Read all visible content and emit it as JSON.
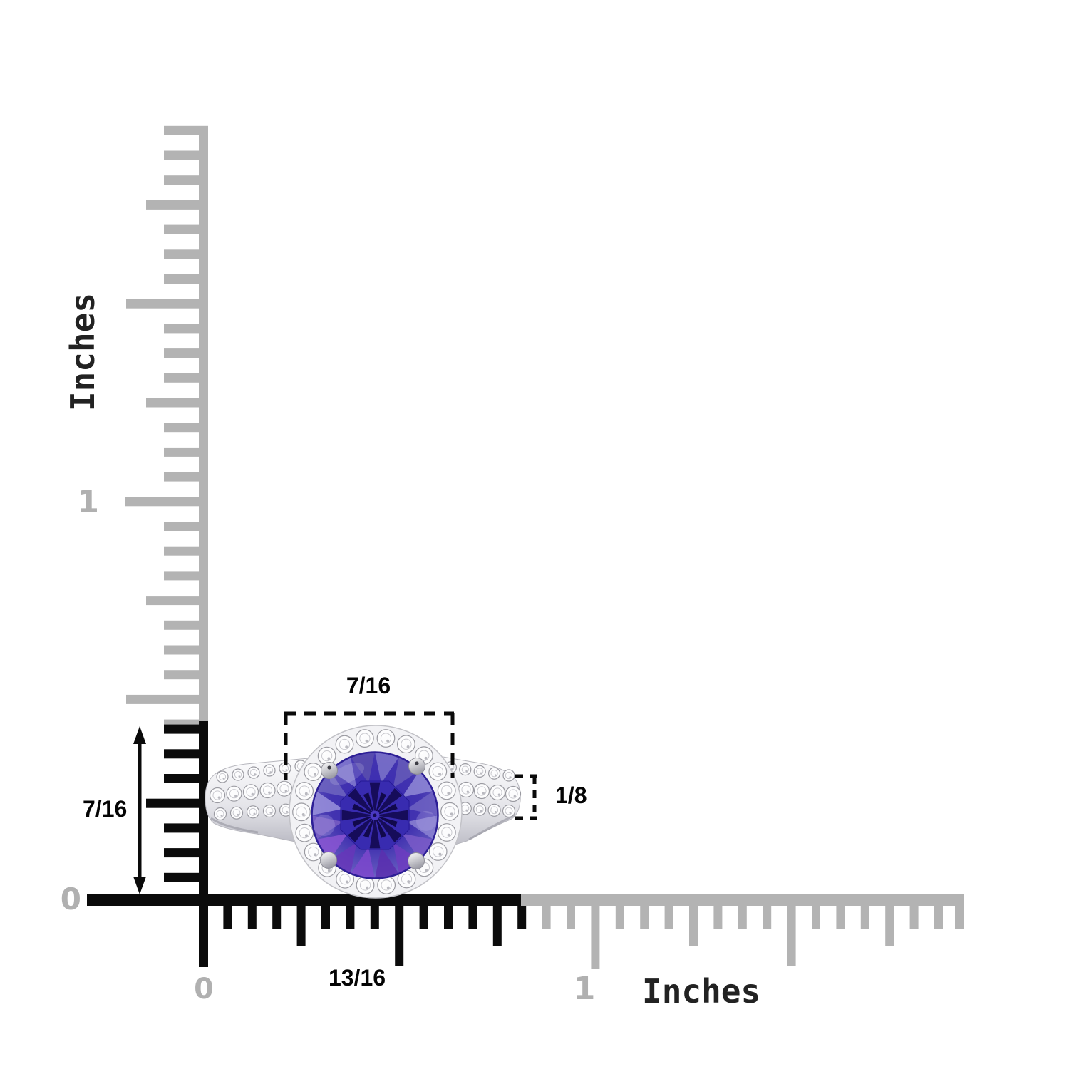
{
  "rulers": {
    "divisions_per_inch": 16,
    "vertical": {
      "label": "Inches",
      "zero": "0",
      "one": "1",
      "black_extent": "7/16"
    },
    "horizontal": {
      "label": "Inches",
      "zero": "0",
      "one": "1",
      "black_extent": "13/16"
    }
  },
  "dimensions": {
    "halo_diameter_in": "7/16",
    "ring_height_in": "7/16",
    "band_width_in": "1/8",
    "ring_width_in": "13/16"
  },
  "ring": {
    "name": "gemstone-halo-ring"
  },
  "colors": {
    "ruler_gray": "#b3b3b3",
    "ruler_black": "#0b0b0b",
    "label_gray": "#b0b0b0",
    "text_dark": "#222222",
    "dimension_text": "#040404",
    "dash_black": "#0a0a0a",
    "metal_light": "#fdfdfe",
    "metal_mid": "#e4e4e9",
    "metal_dark": "#b5b5bf",
    "stone_edge": "#2d1f96",
    "stone_table": "#382bb0",
    "stone_star_dark": "#140a52",
    "stone_star_darker": "#0d0640",
    "stone_core": "#4a39c2",
    "stone_gradient": [
      "#392ab2",
      "#4233b0",
      "#6055bd",
      "#9790da"
    ],
    "stone_palette": [
      "#8c84d2",
      "#7a5ac8",
      "#6d3cc0",
      "#5b2fae",
      "#7c48cc",
      "#6636b8",
      "#8a55d2",
      "#7a5fc4",
      "#9a92dc",
      "#6f65c0",
      "#847bd0",
      "#5a4fae",
      "#7d74ca",
      "#665cb8",
      "#9089d6",
      "#6e63c2"
    ],
    "diamond_white": "#fcfcfd",
    "diamond_stroke": "#9a9aa1"
  }
}
